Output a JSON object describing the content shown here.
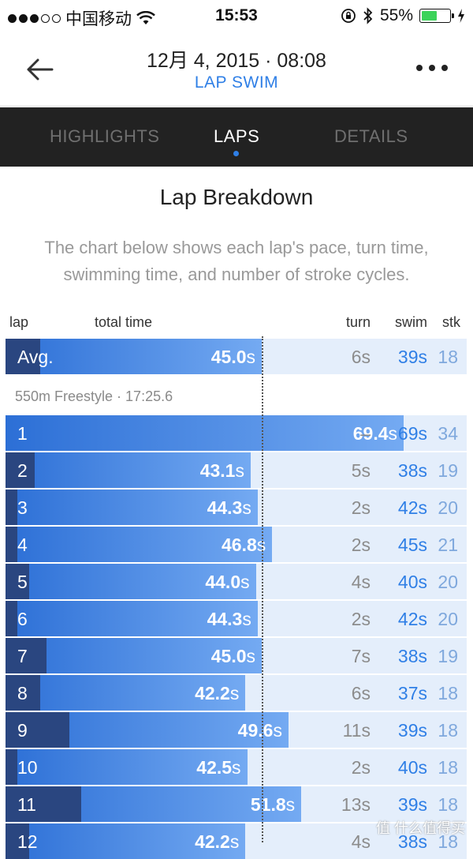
{
  "status": {
    "carrier": "中国移动",
    "time": "15:53",
    "battery": "55%"
  },
  "header": {
    "title": "12月 4, 2015 · 08:08",
    "subtitle": "LAP SWIM"
  },
  "tabs": [
    {
      "label": "HIGHLIGHTS"
    },
    {
      "label": "LAPS"
    },
    {
      "label": "DETAILS"
    }
  ],
  "section": {
    "title": "Lap Breakdown",
    "description": "The chart below shows each lap's pace, turn time, swimming time, and number of stroke cycles."
  },
  "columns": {
    "lap": "lap",
    "total": "total time",
    "turn": "turn",
    "swim": "swim",
    "stk": "stk"
  },
  "avg": {
    "label": "Avg.",
    "total": "45.0",
    "unit": "s",
    "turn": "6s",
    "swim": "39s",
    "stk": "18"
  },
  "meta": "550m  Freestyle · 17:25.6",
  "laps": [
    {
      "lap": "1",
      "total": "69.4",
      "unit": "s",
      "turn": "–",
      "swim": "69s",
      "stk": "34"
    },
    {
      "lap": "2",
      "total": "43.1",
      "unit": "s",
      "turn": "5s",
      "swim": "38s",
      "stk": "19"
    },
    {
      "lap": "3",
      "total": "44.3",
      "unit": "s",
      "turn": "2s",
      "swim": "42s",
      "stk": "20"
    },
    {
      "lap": "4",
      "total": "46.8",
      "unit": "s",
      "turn": "2s",
      "swim": "45s",
      "stk": "21"
    },
    {
      "lap": "5",
      "total": "44.0",
      "unit": "s",
      "turn": "4s",
      "swim": "40s",
      "stk": "20"
    },
    {
      "lap": "6",
      "total": "44.3",
      "unit": "s",
      "turn": "2s",
      "swim": "42s",
      "stk": "20"
    },
    {
      "lap": "7",
      "total": "45.0",
      "unit": "s",
      "turn": "7s",
      "swim": "38s",
      "stk": "19"
    },
    {
      "lap": "8",
      "total": "42.2",
      "unit": "s",
      "turn": "6s",
      "swim": "37s",
      "stk": "18"
    },
    {
      "lap": "9",
      "total": "49.6",
      "unit": "s",
      "turn": "11s",
      "swim": "39s",
      "stk": "18"
    },
    {
      "lap": "10",
      "total": "42.5",
      "unit": "s",
      "turn": "2s",
      "swim": "40s",
      "stk": "18"
    },
    {
      "lap": "11",
      "total": "51.8",
      "unit": "s",
      "turn": "13s",
      "swim": "39s",
      "stk": "18"
    },
    {
      "lap": "12",
      "total": "42.2",
      "unit": "s",
      "turn": "4s",
      "swim": "38s",
      "stk": "18"
    }
  ],
  "watermark": "值 什么值得买",
  "colors": {
    "accent": "#2f7fe6",
    "tabbar": "#222222",
    "turn_bar": "#2a4680",
    "row_bg": "#e4eefb"
  }
}
